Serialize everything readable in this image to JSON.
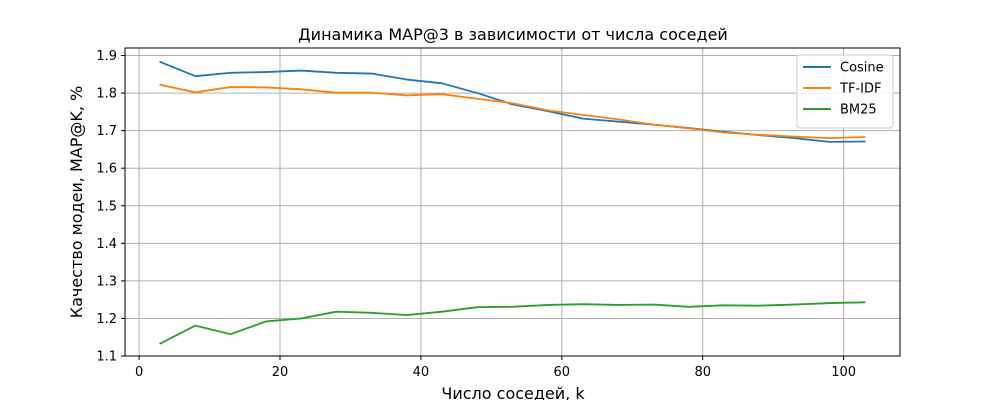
{
  "chart_data": {
    "type": "line",
    "title": "Динамика MAP@3 в зависимости от числа соседей",
    "xlabel": "Число соседей, k",
    "ylabel": "Качество модеи, MAP@K, %",
    "xlim": [
      -2,
      108
    ],
    "ylim": [
      1.1,
      1.92
    ],
    "xticks": [
      0,
      20,
      40,
      60,
      80,
      100
    ],
    "yticks": [
      1.1,
      1.2,
      1.3,
      1.4,
      1.5,
      1.6,
      1.7,
      1.8,
      1.9
    ],
    "grid": true,
    "legend_position": "top-right",
    "x": [
      3,
      8,
      13,
      18,
      23,
      28,
      33,
      38,
      43,
      48,
      53,
      58,
      63,
      68,
      73,
      78,
      83,
      88,
      93,
      98,
      103
    ],
    "series": [
      {
        "name": "Cosine",
        "color": "#1f77b4",
        "values": [
          1.883,
          1.845,
          1.854,
          1.856,
          1.86,
          1.854,
          1.852,
          1.836,
          1.826,
          1.8,
          1.77,
          1.752,
          1.732,
          1.724,
          1.716,
          1.707,
          1.697,
          1.688,
          1.68,
          1.67,
          1.671
        ]
      },
      {
        "name": "TF-IDF",
        "color": "#ff7f0e",
        "values": [
          1.822,
          1.802,
          1.816,
          1.815,
          1.81,
          1.801,
          1.801,
          1.794,
          1.797,
          1.785,
          1.773,
          1.754,
          1.742,
          1.73,
          1.716,
          1.706,
          1.695,
          1.689,
          1.684,
          1.68,
          1.683
        ]
      },
      {
        "name": "BM25",
        "color": "#2ca02c",
        "values": [
          1.133,
          1.181,
          1.158,
          1.192,
          1.2,
          1.218,
          1.215,
          1.209,
          1.218,
          1.23,
          1.231,
          1.236,
          1.238,
          1.236,
          1.237,
          1.231,
          1.235,
          1.234,
          1.237,
          1.241,
          1.243
        ]
      }
    ]
  }
}
